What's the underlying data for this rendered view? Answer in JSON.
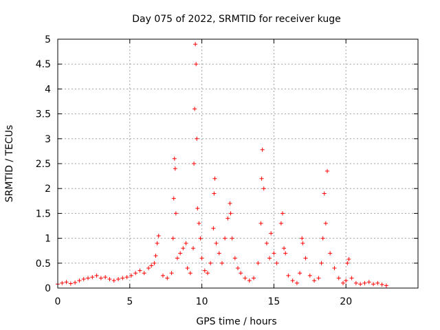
{
  "chart_data": {
    "type": "scatter",
    "title": "Day 075 of 2022, SRMTID for receiver kuge",
    "xlabel": "GPS time / hours",
    "ylabel": "SRMTID / TECUs",
    "xlim": [
      0,
      25
    ],
    "ylim": [
      0,
      5
    ],
    "xticks": [
      0,
      5,
      10,
      15,
      20
    ],
    "xtick_labels": [
      "0",
      "5",
      "10",
      "15",
      "20"
    ],
    "yticks": [
      0,
      0.5,
      1,
      1.5,
      2,
      2.5,
      3,
      3.5,
      4,
      4.5,
      5
    ],
    "ytick_labels": [
      "0",
      "0.5",
      "1",
      "1.5",
      "2",
      "2.5",
      "3",
      "3.5",
      "4",
      "4.5",
      "5"
    ],
    "grid": true,
    "marker": "+",
    "series": [
      {
        "name": "SRMTID",
        "color": "#ff0000",
        "x": [
          0.0,
          0.3,
          0.6,
          0.9,
          1.2,
          1.5,
          1.8,
          2.1,
          2.4,
          2.7,
          3.0,
          3.3,
          3.6,
          3.9,
          4.2,
          4.5,
          4.8,
          5.1,
          5.4,
          5.7,
          6.0,
          6.3,
          6.5,
          6.7,
          6.8,
          6.9,
          7.0,
          7.3,
          7.6,
          7.9,
          8.0,
          8.05,
          8.1,
          8.15,
          8.2,
          8.3,
          8.5,
          8.7,
          8.9,
          9.0,
          9.2,
          9.4,
          9.45,
          9.5,
          9.55,
          9.6,
          9.65,
          9.7,
          9.8,
          9.9,
          10.0,
          10.2,
          10.4,
          10.6,
          10.8,
          10.85,
          10.9,
          11.0,
          11.2,
          11.4,
          11.6,
          11.8,
          11.95,
          12.0,
          12.1,
          12.3,
          12.5,
          12.7,
          13.0,
          13.3,
          13.6,
          13.9,
          14.1,
          14.15,
          14.2,
          14.3,
          14.5,
          14.7,
          14.8,
          15.0,
          15.2,
          15.5,
          15.6,
          15.7,
          15.8,
          16.0,
          16.3,
          16.6,
          16.8,
          16.95,
          17.0,
          17.2,
          17.5,
          17.8,
          18.1,
          18.3,
          18.4,
          18.5,
          18.6,
          18.7,
          18.9,
          19.2,
          19.5,
          19.8,
          20.0,
          20.1,
          20.2,
          20.4,
          20.7,
          21.0,
          21.3,
          21.6,
          21.9,
          22.2,
          22.5,
          22.8
        ],
        "y": [
          0.08,
          0.1,
          0.12,
          0.09,
          0.11,
          0.15,
          0.18,
          0.2,
          0.22,
          0.25,
          0.2,
          0.22,
          0.18,
          0.15,
          0.18,
          0.2,
          0.22,
          0.25,
          0.3,
          0.35,
          0.3,
          0.4,
          0.45,
          0.5,
          0.65,
          0.9,
          1.05,
          0.25,
          0.2,
          0.3,
          1.0,
          1.8,
          2.6,
          2.4,
          1.5,
          0.6,
          0.7,
          0.8,
          0.9,
          0.4,
          0.3,
          0.8,
          2.5,
          3.6,
          4.9,
          4.5,
          3.0,
          1.6,
          1.3,
          1.0,
          0.6,
          0.35,
          0.3,
          0.5,
          1.2,
          1.9,
          2.2,
          0.9,
          0.7,
          0.5,
          1.0,
          1.4,
          1.7,
          1.5,
          1.0,
          0.6,
          0.4,
          0.3,
          0.2,
          0.15,
          0.2,
          0.5,
          1.3,
          2.2,
          2.78,
          2.0,
          0.9,
          0.6,
          1.1,
          0.7,
          0.5,
          1.3,
          1.5,
          0.8,
          0.7,
          0.25,
          0.15,
          0.1,
          0.3,
          1.0,
          0.9,
          0.6,
          0.25,
          0.15,
          0.2,
          0.5,
          1.0,
          1.9,
          1.3,
          2.35,
          0.7,
          0.4,
          0.2,
          0.1,
          0.15,
          0.5,
          0.58,
          0.2,
          0.1,
          0.08,
          0.1,
          0.12,
          0.08,
          0.1,
          0.07,
          0.05
        ]
      }
    ]
  }
}
